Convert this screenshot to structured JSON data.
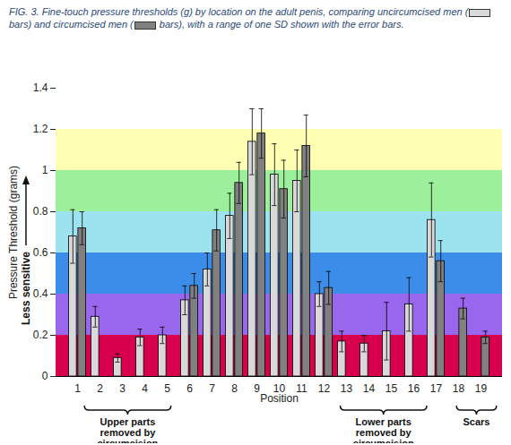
{
  "chart_data": {
    "type": "bar",
    "caption": [
      "FIG. 3. Fine-touch pressure thresholds (g) by location on the adult penis, comparing ",
      " (",
      " bars) and ",
      " (",
      " bars), with a range of one SD shown with the error bars."
    ],
    "x_label": "Position",
    "y_label": "Pressure Threshold (grams)",
    "y_annotation": "Less sensitive",
    "categories": [
      "1",
      "2",
      "3",
      "4",
      "5",
      "6",
      "7",
      "8",
      "9",
      "10",
      "11",
      "12",
      "13",
      "14",
      "15",
      "16",
      "17",
      "18",
      "19"
    ],
    "series": [
      {
        "name": "uncircumcised men",
        "color": "#d9d9d9",
        "values": [
          0.68,
          0.29,
          0.09,
          0.19,
          0.2,
          0.37,
          0.52,
          0.78,
          1.14,
          0.98,
          0.95,
          0.4,
          0.17,
          0.16,
          0.22,
          0.35,
          0.76,
          null,
          null
        ],
        "errors": [
          0.13,
          0.05,
          0.02,
          0.04,
          0.04,
          0.07,
          0.08,
          0.11,
          0.16,
          0.15,
          0.15,
          0.06,
          0.05,
          0.04,
          0.14,
          0.13,
          0.18,
          null,
          null
        ]
      },
      {
        "name": "circumcised men",
        "color": "#808080",
        "values": [
          0.72,
          null,
          null,
          null,
          null,
          0.44,
          0.71,
          0.94,
          1.18,
          0.91,
          1.12,
          0.43,
          null,
          null,
          null,
          null,
          0.56,
          0.33,
          0.19
        ],
        "errors": [
          0.08,
          null,
          null,
          null,
          null,
          0.06,
          0.1,
          0.1,
          0.12,
          0.14,
          0.15,
          0.08,
          null,
          null,
          null,
          null,
          0.1,
          0.05,
          0.03
        ]
      }
    ],
    "bands": [
      {
        "from": 0,
        "to": 0.2,
        "color": "#d8004c"
      },
      {
        "from": 0.2,
        "to": 0.4,
        "color": "#9966ee"
      },
      {
        "from": 0.4,
        "to": 0.6,
        "color": "#3c8dea"
      },
      {
        "from": 0.6,
        "to": 0.8,
        "color": "#9ce3ef"
      },
      {
        "from": 0.8,
        "to": 1.0,
        "color": "#9cf09c"
      },
      {
        "from": 1.0,
        "to": 1.2,
        "color": "#ffffb3"
      }
    ],
    "annotations": [
      {
        "lines": [
          "Upper parts",
          "removed by",
          "circumcision"
        ],
        "from": "2",
        "to": "5"
      },
      {
        "lines": [
          "Lower parts",
          "removed by",
          "circumcision"
        ],
        "from": "13",
        "to": "16"
      },
      {
        "lines": [
          "Scars"
        ],
        "from": "18",
        "to": "19"
      }
    ],
    "ylim": [
      0,
      1.4
    ],
    "yticks": [
      0,
      0.2,
      0.4,
      0.6,
      0.8,
      1,
      1.2,
      1.4
    ]
  }
}
